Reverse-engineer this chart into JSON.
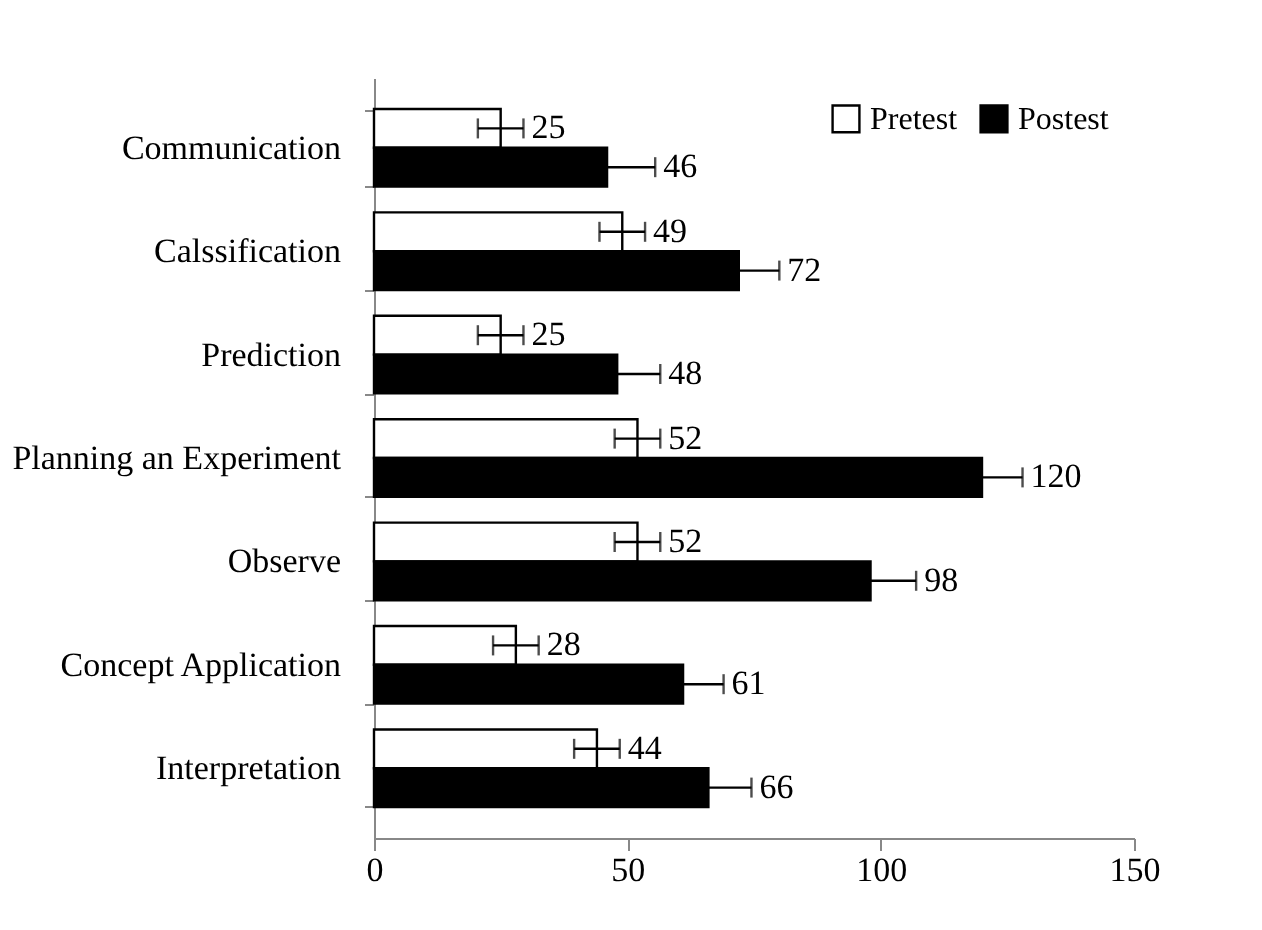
{
  "chart_data": {
    "type": "bar",
    "orientation": "horizontal",
    "categories": [
      "Communication",
      "Calssification",
      "Prediction",
      "Planning an Experiment",
      "Observe",
      "Concept Application",
      "Interpretation"
    ],
    "series": [
      {
        "name": "Pretest",
        "color": "#ffffff",
        "values": [
          25,
          49,
          25,
          52,
          52,
          28,
          44
        ],
        "errors": [
          4.5,
          4.5,
          4.5,
          4.5,
          4.5,
          4.5,
          4.5
        ]
      },
      {
        "name": "Postest",
        "color": "#000000",
        "values": [
          46,
          72,
          48,
          120,
          98,
          61,
          66
        ],
        "errors": [
          9.5,
          8,
          8.5,
          8,
          9,
          8,
          8.5
        ]
      }
    ],
    "xlim": [
      0,
      150
    ],
    "xticks": [
      0,
      50,
      100,
      150
    ],
    "grid": false,
    "legend": "top right",
    "data_labels": true
  }
}
